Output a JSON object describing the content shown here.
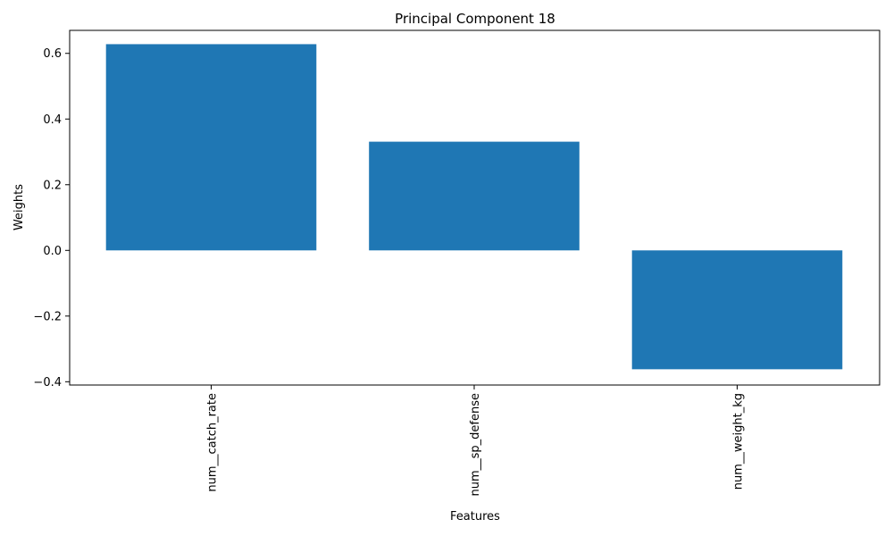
{
  "chart_data": {
    "type": "bar",
    "title": "Principal Component 18",
    "xlabel": "Features",
    "ylabel": "Weights",
    "categories": [
      "num__catch_rate",
      "num__sp_defense",
      "num__weight_kg"
    ],
    "values": [
      0.628,
      0.331,
      -0.362
    ],
    "ylim": [
      -0.41,
      0.67
    ],
    "yticks": [
      {
        "value": 0.6,
        "label": "0.6"
      },
      {
        "value": 0.4,
        "label": "0.4"
      },
      {
        "value": 0.2,
        "label": "0.2"
      },
      {
        "value": 0.0,
        "label": "0.0"
      },
      {
        "value": -0.2,
        "label": "−0.2"
      },
      {
        "value": -0.4,
        "label": "−0.4"
      }
    ],
    "bar_color": "#1f77b4",
    "grid": false,
    "legend": "none"
  }
}
